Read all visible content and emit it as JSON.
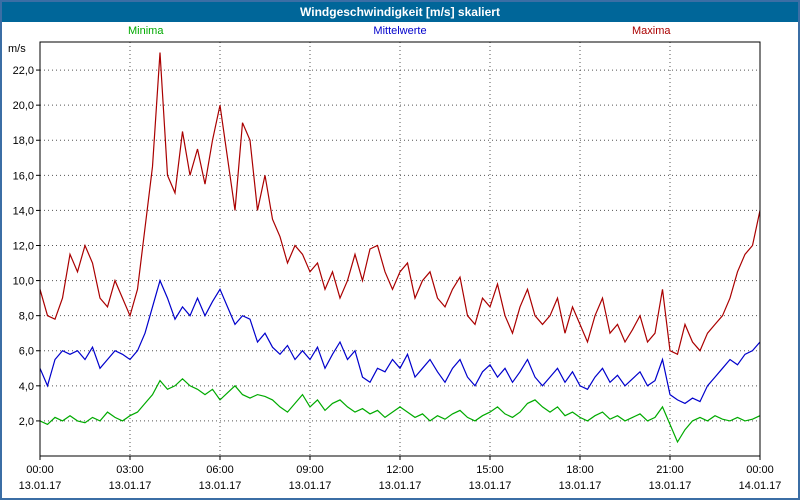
{
  "window": {
    "title": "Windgeschwindigkeit [m/s] skaliert"
  },
  "legend": [
    {
      "label": "Minima",
      "color": "#00aa00"
    },
    {
      "label": "Mittelwerte",
      "color": "#0000cc"
    },
    {
      "label": "Maxima",
      "color": "#aa0000"
    }
  ],
  "colors": {
    "frame_border": "#3b6ea5",
    "header_bg": "#006699",
    "header_text": "#ffffff",
    "grid": "#555555",
    "axis": "#000000",
    "plot_bg": "#ffffff"
  },
  "chart_data": {
    "type": "line",
    "title": "Windgeschwindigkeit [m/s] skaliert",
    "ylabel": "m/s",
    "ylim": [
      0,
      23.6
    ],
    "y_ticks": [
      2,
      4,
      6,
      8,
      10,
      12,
      14,
      16,
      18,
      20,
      22
    ],
    "grid": "dotted",
    "legend_position": "top",
    "x_hours_range": [
      0,
      24
    ],
    "x_step_hours": 0.25,
    "x_ticks": [
      {
        "time": "00:00",
        "date": "13.01.17"
      },
      {
        "time": "03:00",
        "date": "13.01.17"
      },
      {
        "time": "06:00",
        "date": "13.01.17"
      },
      {
        "time": "09:00",
        "date": "13.01.17"
      },
      {
        "time": "12:00",
        "date": "13.01.17"
      },
      {
        "time": "15:00",
        "date": "13.01.17"
      },
      {
        "time": "18:00",
        "date": "13.01.17"
      },
      {
        "time": "21:00",
        "date": "13.01.17"
      },
      {
        "time": "00:00",
        "date": "14.01.17"
      }
    ],
    "series": [
      {
        "name": "Minima",
        "color": "#00aa00",
        "values": [
          2.0,
          1.8,
          2.2,
          2.0,
          2.3,
          2.0,
          1.9,
          2.2,
          2.0,
          2.5,
          2.2,
          2.0,
          2.3,
          2.5,
          3.0,
          3.5,
          4.3,
          3.8,
          4.0,
          4.4,
          4.0,
          3.8,
          3.5,
          3.8,
          3.2,
          3.6,
          4.0,
          3.5,
          3.3,
          3.5,
          3.4,
          3.2,
          2.8,
          2.5,
          3.0,
          3.5,
          2.8,
          3.2,
          2.6,
          3.0,
          3.2,
          2.8,
          2.5,
          2.7,
          2.4,
          2.6,
          2.2,
          2.5,
          2.8,
          2.5,
          2.2,
          2.4,
          2.0,
          2.3,
          2.1,
          2.4,
          2.6,
          2.2,
          2.0,
          2.3,
          2.5,
          2.8,
          2.4,
          2.2,
          2.5,
          3.0,
          3.2,
          2.8,
          2.5,
          2.8,
          2.3,
          2.5,
          2.2,
          2.0,
          2.3,
          2.5,
          2.1,
          2.3,
          2.0,
          2.2,
          2.4,
          2.0,
          2.2,
          2.8,
          1.8,
          0.8,
          1.5,
          2.0,
          2.2,
          2.0,
          2.3,
          2.1,
          2.0,
          2.2,
          2.0,
          2.1,
          2.3
        ]
      },
      {
        "name": "Mittelwerte",
        "color": "#0000cc",
        "values": [
          5.0,
          4.0,
          5.5,
          6.0,
          5.8,
          6.0,
          5.5,
          6.2,
          5.0,
          5.5,
          6.0,
          5.8,
          5.5,
          6.0,
          7.0,
          8.5,
          10.0,
          9.0,
          7.8,
          8.5,
          8.0,
          9.0,
          8.0,
          8.8,
          9.5,
          8.5,
          7.5,
          8.0,
          7.8,
          6.5,
          7.0,
          6.2,
          5.8,
          6.3,
          5.5,
          6.0,
          5.5,
          6.2,
          5.0,
          5.8,
          6.5,
          5.5,
          6.0,
          4.5,
          4.2,
          5.0,
          4.8,
          5.5,
          5.0,
          5.8,
          4.5,
          5.0,
          5.5,
          4.8,
          4.2,
          5.0,
          5.5,
          4.5,
          4.0,
          4.8,
          5.2,
          4.5,
          5.0,
          4.2,
          4.8,
          5.5,
          4.5,
          4.0,
          4.5,
          5.0,
          4.2,
          4.8,
          4.0,
          3.8,
          4.5,
          5.0,
          4.2,
          4.6,
          4.0,
          4.4,
          4.8,
          4.0,
          4.3,
          5.5,
          3.5,
          3.2,
          3.0,
          3.3,
          3.1,
          4.0,
          4.5,
          5.0,
          5.5,
          5.2,
          5.8,
          6.0,
          6.5
        ]
      },
      {
        "name": "Maxima",
        "color": "#aa0000",
        "values": [
          9.5,
          8.0,
          7.8,
          9.0,
          11.5,
          10.5,
          12.0,
          11.0,
          9.0,
          8.5,
          10.0,
          9.0,
          8.0,
          9.5,
          13.0,
          16.5,
          23.0,
          16.0,
          15.0,
          18.5,
          16.0,
          17.5,
          15.5,
          18.0,
          20.0,
          17.0,
          14.0,
          19.0,
          18.0,
          14.0,
          16.0,
          13.5,
          12.5,
          11.0,
          12.0,
          11.5,
          10.5,
          11.0,
          9.5,
          10.5,
          9.0,
          10.0,
          11.5,
          10.0,
          11.8,
          12.0,
          10.5,
          9.5,
          10.5,
          11.0,
          9.0,
          10.0,
          10.5,
          9.0,
          8.5,
          9.5,
          10.2,
          8.0,
          7.5,
          9.0,
          8.5,
          9.8,
          8.0,
          7.0,
          8.5,
          9.5,
          8.0,
          7.5,
          8.0,
          9.0,
          7.0,
          8.5,
          7.5,
          6.5,
          8.0,
          9.0,
          7.0,
          7.5,
          6.5,
          7.2,
          8.0,
          6.5,
          7.0,
          9.5,
          6.0,
          5.8,
          7.5,
          6.5,
          6.0,
          7.0,
          7.5,
          8.0,
          9.0,
          10.5,
          11.5,
          12.0,
          14.0
        ]
      }
    ]
  }
}
